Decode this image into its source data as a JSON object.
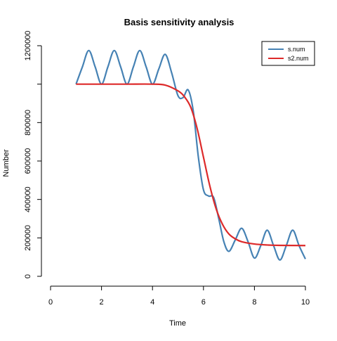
{
  "colors": {
    "s_num": "#4682b4",
    "s2_num": "#dd2a2a",
    "axis": "#000000"
  },
  "chart_data": {
    "type": "line",
    "title": "Basis sensitivity analysis",
    "xlabel": "Time",
    "ylabel": "Number",
    "xlim": [
      0,
      10
    ],
    "ylim": [
      0,
      1200000
    ],
    "xticks": [
      0,
      2,
      4,
      6,
      8,
      10
    ],
    "yticks": [
      0,
      200000,
      400000,
      600000,
      800000,
      1000000,
      1200000
    ],
    "yticklabels": [
      "0",
      "200000",
      "400000",
      "600000",
      "800000",
      "",
      "1200000"
    ],
    "grid": false,
    "legend": "top-right",
    "series": [
      {
        "name": "s.num",
        "x": [
          1.0,
          1.25,
          1.5,
          1.75,
          2.0,
          2.25,
          2.5,
          2.75,
          3.0,
          3.25,
          3.5,
          3.75,
          4.0,
          4.25,
          4.5,
          4.75,
          5.0,
          5.2,
          5.4,
          5.6,
          5.8,
          6.0,
          6.2,
          6.4,
          6.6,
          6.8,
          7.0,
          7.25,
          7.5,
          7.75,
          8.0,
          8.25,
          8.5,
          8.75,
          9.0,
          9.25,
          9.5,
          9.75,
          10.0
        ],
        "values": [
          1000000,
          1090000,
          1175000,
          1090000,
          1000000,
          1090000,
          1175000,
          1090000,
          1000000,
          1090000,
          1175000,
          1090000,
          1000000,
          1080000,
          1155000,
          1060000,
          940000,
          930000,
          970000,
          860000,
          620000,
          450000,
          418000,
          410000,
          300000,
          180000,
          130000,
          190000,
          250000,
          180000,
          95000,
          160000,
          240000,
          160000,
          85000,
          160000,
          240000,
          160000,
          90000
        ]
      },
      {
        "name": "s2.num",
        "x": [
          1.0,
          2.0,
          3.0,
          4.0,
          4.5,
          5.0,
          5.25,
          5.5,
          5.75,
          6.0,
          6.25,
          6.5,
          6.75,
          7.0,
          7.25,
          7.5,
          8.0,
          8.5,
          9.0,
          10.0
        ],
        "values": [
          1000000,
          1000000,
          1000000,
          1000000,
          995000,
          965000,
          935000,
          880000,
          770000,
          620000,
          470000,
          350000,
          270000,
          220000,
          195000,
          180000,
          168000,
          163000,
          161000,
          160000
        ]
      }
    ]
  }
}
